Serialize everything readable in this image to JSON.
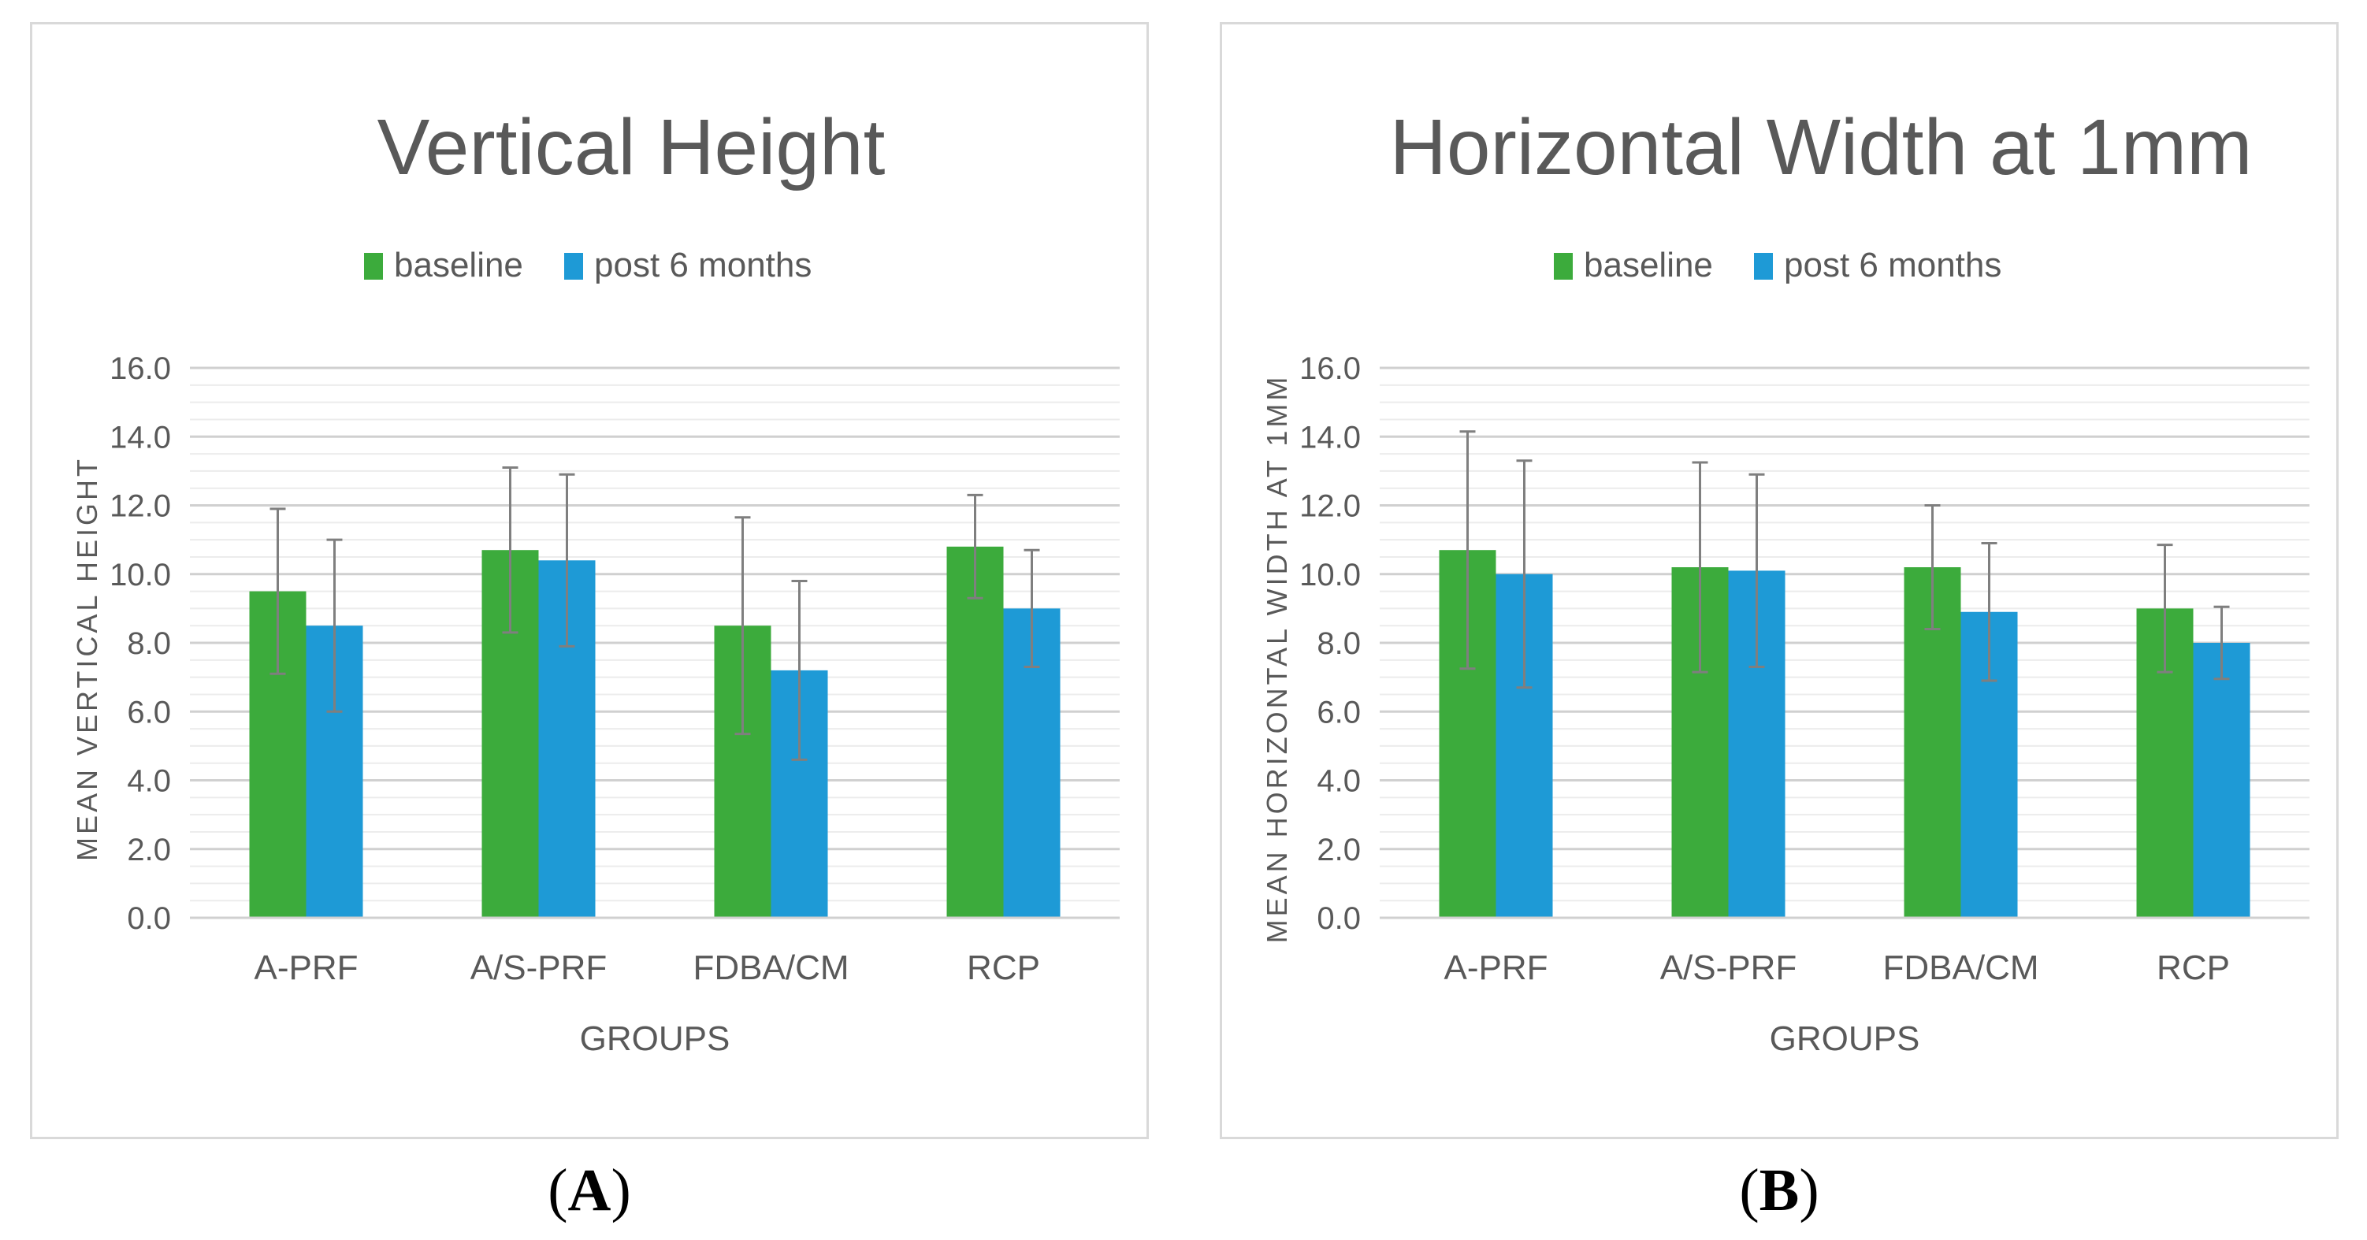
{
  "chart_data": [
    {
      "type": "bar",
      "title": "Vertical Height",
      "xlabel": "GROUPS",
      "ylabel": "MEAN VERTICAL HEIGHT",
      "categories": [
        "A-PRF",
        "A/S-PRF",
        "FDBA/CM",
        "RCP"
      ],
      "ylim": [
        0,
        16
      ],
      "yticks": [
        "0.0",
        "2.0",
        "4.0",
        "6.0",
        "8.0",
        "10.0",
        "12.0",
        "14.0",
        "16.0"
      ],
      "legend_position": "top-center",
      "grid": true,
      "series": [
        {
          "name": "baseline",
          "color": "#3cab3c",
          "values": [
            9.5,
            10.7,
            8.5,
            10.8
          ],
          "errors": [
            2.4,
            2.4,
            3.15,
            1.5
          ]
        },
        {
          "name": "post 6 months",
          "color": "#1e9ad6",
          "values": [
            8.5,
            10.4,
            7.2,
            9.0
          ],
          "errors": [
            2.5,
            2.5,
            2.6,
            1.7
          ]
        }
      ],
      "panel_label": {
        "open": "(",
        "letter": "A",
        "close": ")"
      }
    },
    {
      "type": "bar",
      "title": "Horizontal Width at 1mm",
      "xlabel": "GROUPS",
      "ylabel": "MEAN HORIZONTAL WIDTH AT 1MM",
      "categories": [
        "A-PRF",
        "A/S-PRF",
        "FDBA/CM",
        "RCP"
      ],
      "ylim": [
        0,
        16
      ],
      "yticks": [
        "0.0",
        "2.0",
        "4.0",
        "6.0",
        "8.0",
        "10.0",
        "12.0",
        "14.0",
        "16.0"
      ],
      "legend_position": "top-center",
      "grid": true,
      "series": [
        {
          "name": "baseline",
          "color": "#3cab3c",
          "values": [
            10.7,
            10.2,
            10.2,
            9.0
          ],
          "errors": [
            3.45,
            3.05,
            1.8,
            1.85
          ]
        },
        {
          "name": "post 6 months",
          "color": "#1e9ad6",
          "values": [
            10.0,
            10.1,
            8.9,
            8.0
          ],
          "errors": [
            3.3,
            2.8,
            2.0,
            1.05
          ]
        }
      ],
      "panel_label": {
        "open": "(",
        "letter": "B",
        "close": ")"
      }
    }
  ]
}
